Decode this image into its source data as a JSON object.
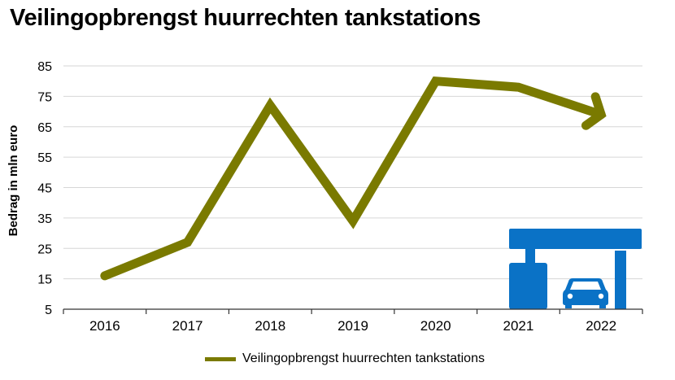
{
  "title": "Veilingopbrengst huurrechten tankstations",
  "chart_data": {
    "type": "line",
    "title": "Veilingopbrengst huurrechten tankstations",
    "xlabel": "",
    "ylabel": "Bedrag in mln euro",
    "categories": [
      "2016",
      "2017",
      "2018",
      "2019",
      "2020",
      "2021",
      "2022"
    ],
    "series": [
      {
        "name": "Veilingopbrengst huurrechten tankstations",
        "values": [
          16,
          27,
          72,
          34,
          80,
          78,
          69
        ],
        "color": "#7a7a00"
      }
    ],
    "yticks": [
      5,
      15,
      25,
      35,
      45,
      55,
      65,
      75,
      85
    ],
    "ylim": [
      5,
      85
    ],
    "grid": true,
    "legend": "bottom",
    "last_point_arrow": true
  },
  "decoration": {
    "icon": "gas-station-car-icon",
    "color": "#0a72c6"
  }
}
